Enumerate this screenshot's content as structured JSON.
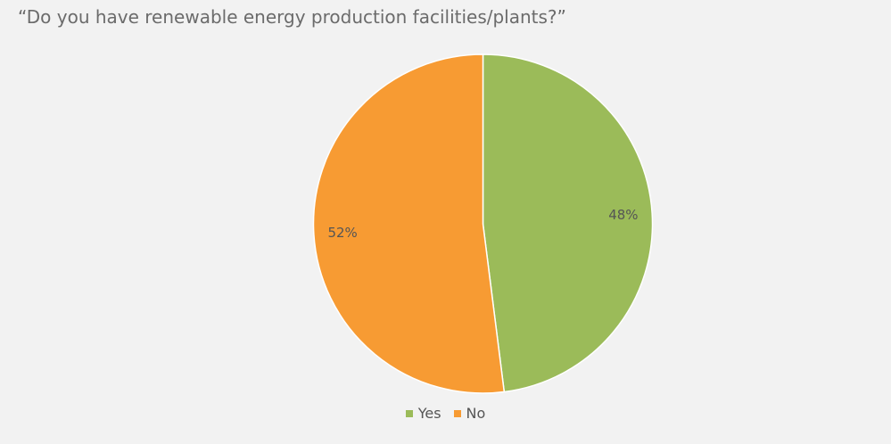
{
  "chart_data": {
    "type": "pie",
    "title": "“Do you have renewable energy production facilities/plants?”",
    "categories": [
      "Yes",
      "No"
    ],
    "values": [
      48,
      52
    ],
    "labels": [
      "48%",
      "52%"
    ],
    "colors": [
      "#9bbb59",
      "#f79b33"
    ],
    "legend_position": "bottom",
    "start_angle": "12 o'clock, clockwise"
  }
}
